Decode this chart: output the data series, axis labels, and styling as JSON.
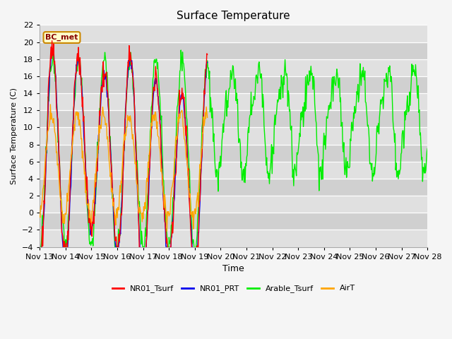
{
  "title": "Surface Temperature",
  "ylabel": "Surface Temperature (C)",
  "xlabel": "Time",
  "ylim": [
    -4,
    22
  ],
  "background_color": "#f5f5f5",
  "plot_bg_alternating": [
    "#e8e8e8",
    "#d8d8d8"
  ],
  "grid_color": "#ffffff",
  "annotation_text": "BC_met",
  "annotation_bg": "#ffffcc",
  "annotation_border": "#cc8800",
  "annotation_text_color": "#880000",
  "legend_entries": [
    "NR01_Tsurf",
    "NR01_PRT",
    "Arable_Tsurf",
    "AirT"
  ],
  "legend_colors": [
    "#ff0000",
    "#0000ee",
    "#00ee00",
    "#ffa500"
  ],
  "series_linewidth": 1.0,
  "tick_labels": [
    "Nov 13",
    "Nov 14",
    "Nov 15",
    "Nov 16",
    "Nov 17",
    "Nov 18",
    "Nov 19",
    "Nov 20",
    "Nov 21",
    "Nov 22",
    "Nov 23",
    "Nov 24",
    "Nov 25",
    "Nov 26",
    "Nov 27",
    "Nov 28"
  ],
  "yticks": [
    -4,
    -2,
    0,
    2,
    4,
    6,
    8,
    10,
    12,
    14,
    16,
    18,
    20,
    22
  ]
}
